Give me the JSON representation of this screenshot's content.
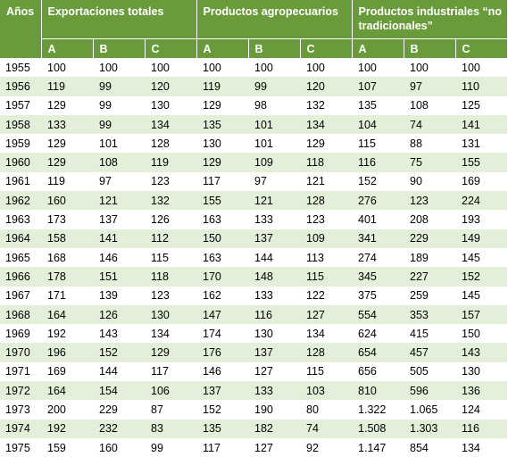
{
  "headers": {
    "year": "Años",
    "groups": [
      "Exportaciones totales",
      "Productos agropecuarios",
      "Productos industriales “no tradicionales”"
    ],
    "sub": [
      "A",
      "B",
      "C"
    ]
  },
  "rows": [
    [
      "1955",
      "100",
      "100",
      "100",
      "100",
      "100",
      "100",
      "100",
      "100",
      "100"
    ],
    [
      "1956",
      "119",
      "99",
      "120",
      "119",
      "99",
      "120",
      "107",
      "97",
      "110"
    ],
    [
      "1957",
      "129",
      "99",
      "130",
      "129",
      "98",
      "132",
      "135",
      "108",
      "125"
    ],
    [
      "1958",
      "133",
      "99",
      "134",
      "135",
      "101",
      "134",
      "104",
      "74",
      "141"
    ],
    [
      "1959",
      "129",
      "101",
      "128",
      "130",
      "101",
      "129",
      "115",
      "88",
      "131"
    ],
    [
      "1960",
      "129",
      "108",
      "119",
      "129",
      "109",
      "118",
      "116",
      "75",
      "155"
    ],
    [
      "1961",
      "119",
      "97",
      "123",
      "117",
      "97",
      "121",
      "152",
      "90",
      "169"
    ],
    [
      "1962",
      "160",
      "121",
      "132",
      "155",
      "121",
      "128",
      "276",
      "123",
      "224"
    ],
    [
      "1963",
      "173",
      "137",
      "126",
      "163",
      "133",
      "123",
      "401",
      "208",
      "193"
    ],
    [
      "1964",
      "158",
      "141",
      "112",
      "150",
      "137",
      "109",
      "341",
      "229",
      "149"
    ],
    [
      "1965",
      "168",
      "146",
      "115",
      "163",
      "144",
      "113",
      "274",
      "189",
      "145"
    ],
    [
      "1966",
      "178",
      "151",
      "118",
      "170",
      "148",
      "115",
      "345",
      "227",
      "152"
    ],
    [
      "1967",
      "171",
      "139",
      "123",
      "162",
      "133",
      "122",
      "375",
      "259",
      "145"
    ],
    [
      "1968",
      "164",
      "126",
      "130",
      "147",
      "116",
      "127",
      "554",
      "353",
      "157"
    ],
    [
      "1969",
      "192",
      "143",
      "134",
      "174",
      "130",
      "134",
      "624",
      "415",
      "150"
    ],
    [
      "1970",
      "196",
      "152",
      "129",
      "176",
      "137",
      "128",
      "654",
      "457",
      "143"
    ],
    [
      "1971",
      "169",
      "144",
      "117",
      "146",
      "127",
      "115",
      "656",
      "505",
      "130"
    ],
    [
      "1972",
      "164",
      "154",
      "106",
      "137",
      "133",
      "103",
      "810",
      "596",
      "136"
    ],
    [
      "1973",
      "200",
      "229",
      "87",
      "152",
      "190",
      "80",
      "1.322",
      "1.065",
      "124"
    ],
    [
      "1974",
      "192",
      "232",
      "83",
      "135",
      "182",
      "74",
      "1.508",
      "1.303",
      "116"
    ],
    [
      "1975",
      "159",
      "160",
      "99",
      "117",
      "127",
      "92",
      "1.147",
      "854",
      "134"
    ]
  ]
}
